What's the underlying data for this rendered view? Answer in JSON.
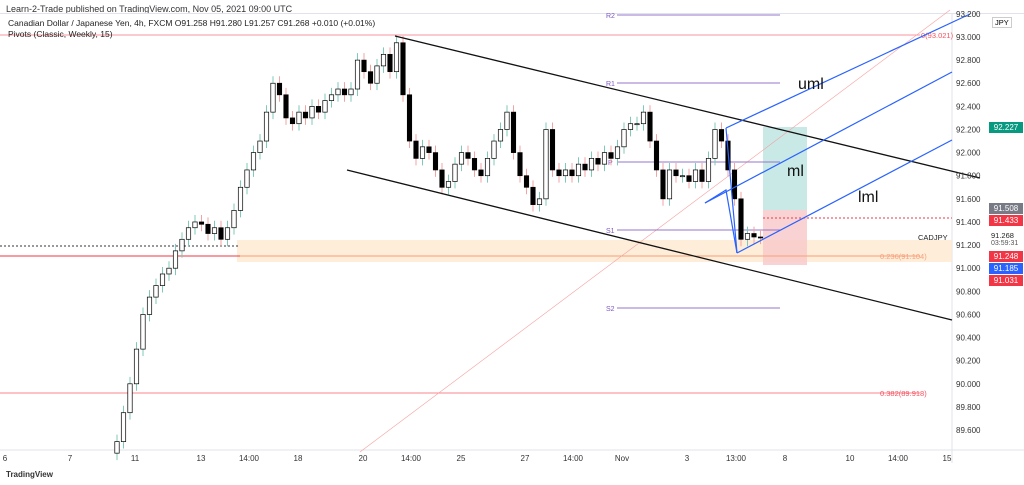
{
  "publisher_line": "Learn-2-Trade published on TradingView.com, Nov 05, 2021 09:00 UTC",
  "legend": {
    "symbol_line": "Canadian Dollar / Japanese Yen, 4h, FXCM  O91.258  H91.280  L91.257  C91.268  +0.010 (+0.01%)",
    "indicator_line": "Pivots (Classic, Weekly, 15)"
  },
  "currency": "JPY",
  "symbol": "CADJPY",
  "countdown": "03:59:31",
  "footer": "TradingView",
  "annotations": {
    "uml": "uml",
    "ml": "ml",
    "lml": "lml"
  },
  "pivots": {
    "r2": "R2",
    "r1": "R1",
    "p": "P",
    "s1": "S1",
    "s2": "S2"
  },
  "fib": {
    "f0": "0(93.021)",
    "f236": "0.236(91.104)",
    "f382": "0.382(89.918)"
  },
  "badges": {
    "tp": "92.227",
    "pos_mid": "91.508",
    "entry": "91.433",
    "last": "91.268",
    "b1": "91.248",
    "b2": "91.185",
    "b3": "91.031"
  },
  "colors": {
    "up": "#ffffff",
    "down": "#000000",
    "tp": "#089981",
    "red": "#f23645",
    "blue": "#2962ff",
    "gray": "#787b86",
    "pivot": "#9575cd",
    "fib": "#f7525f"
  },
  "chart_data": {
    "type": "candlestick",
    "ylim": [
      89.5,
      93.25
    ],
    "y_ticks": [
      "93.200",
      "93.000",
      "92.800",
      "92.600",
      "92.400",
      "92.200",
      "92.000",
      "91.800",
      "91.600",
      "91.400",
      "91.200",
      "91.000",
      "90.800",
      "90.600",
      "90.400",
      "90.200",
      "90.000",
      "89.800",
      "89.600"
    ],
    "x_ticks": [
      "6",
      "7",
      "11",
      "13",
      "14:00",
      "18",
      "20",
      "14:00",
      "25",
      "27",
      "14:00",
      "Nov",
      "3",
      "13:00",
      "8",
      "10",
      "14:00",
      "15"
    ],
    "closes": [
      89.5,
      89.75,
      90.0,
      90.3,
      90.6,
      90.75,
      90.85,
      90.95,
      91.0,
      91.15,
      91.25,
      91.35,
      91.4,
      91.38,
      91.3,
      91.35,
      91.25,
      91.35,
      91.5,
      91.7,
      91.85,
      92.0,
      92.1,
      92.35,
      92.6,
      92.5,
      92.3,
      92.25,
      92.35,
      92.3,
      92.4,
      92.35,
      92.45,
      92.5,
      92.55,
      92.5,
      92.55,
      92.8,
      92.7,
      92.6,
      92.75,
      92.85,
      92.7,
      92.95,
      92.5,
      92.1,
      91.95,
      92.05,
      92.0,
      91.85,
      91.7,
      91.75,
      91.9,
      92.0,
      91.95,
      91.85,
      91.8,
      91.95,
      92.1,
      92.2,
      92.35,
      92.0,
      91.8,
      91.7,
      91.55,
      91.6,
      92.2,
      91.85,
      91.8,
      91.85,
      91.8,
      91.9,
      91.85,
      91.95,
      91.9,
      92.0,
      91.95,
      92.05,
      92.2,
      92.25,
      92.25,
      92.35,
      92.1,
      91.85,
      91.6,
      91.85,
      91.8,
      91.8,
      91.75,
      91.85,
      91.75,
      91.95,
      92.2,
      92.1,
      91.85,
      91.6,
      91.25,
      91.3,
      91.27,
      91.268
    ]
  }
}
